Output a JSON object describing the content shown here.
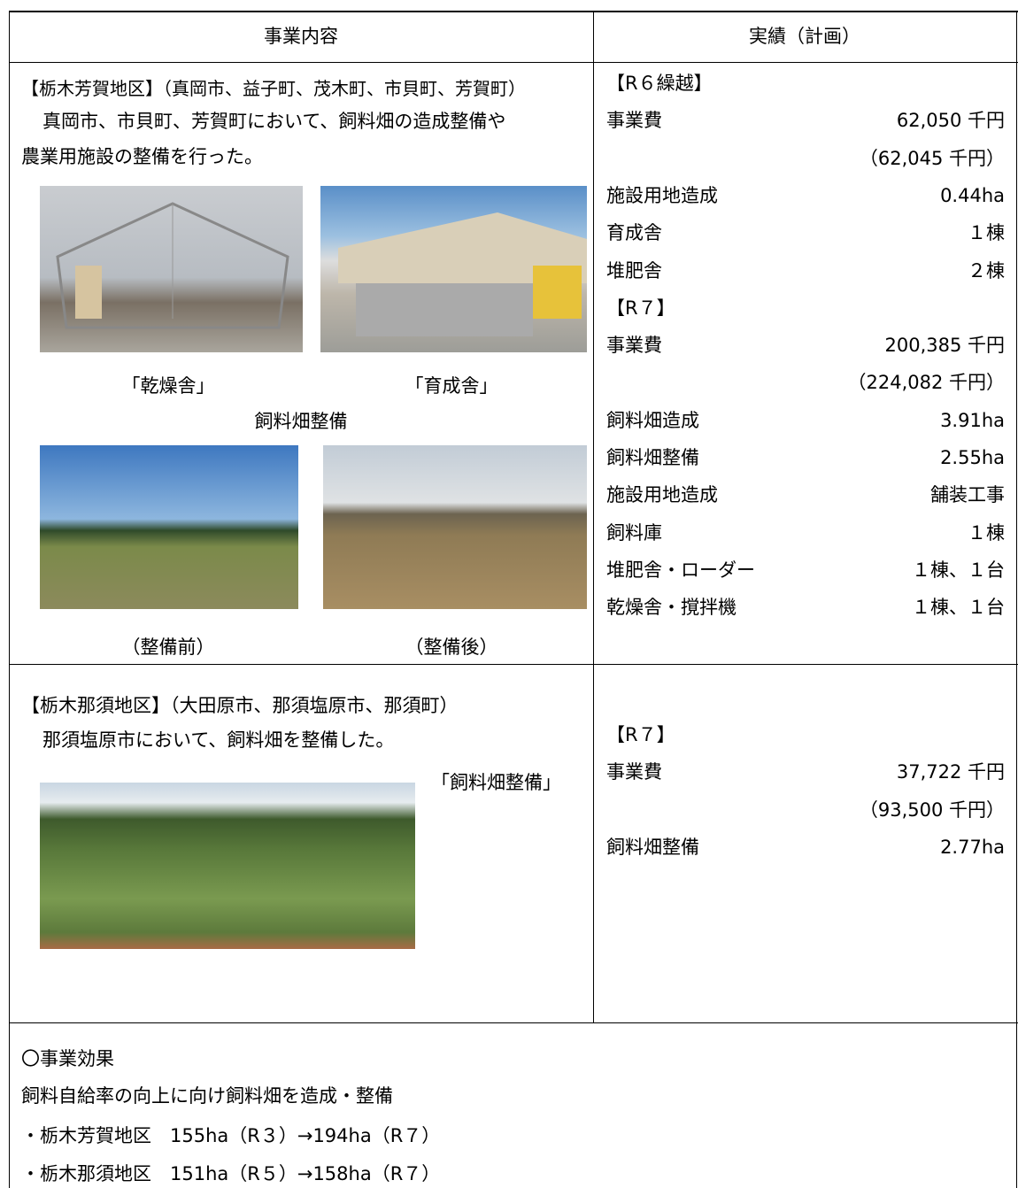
{
  "table": {
    "headers": [
      "事業内容",
      "実績（計画）"
    ],
    "rows": [
      {
        "left": {
          "title": "【栃木芳賀地区】（真岡市、益子町、茂木町、市貝町、芳賀町）",
          "lines": [
            "真岡市、市貝町、芳賀町において、飼料畑の造成整備や",
            "農業用施設の整備を行った。"
          ],
          "captions": [
            "「乾燥舎」",
            "「育成舎」"
          ],
          "group_label": "飼料畑整備",
          "captions_2": [
            "（整備前）",
            "（整備後）"
          ]
        },
        "right": [
          {
            "period": "【R６繰越】",
            "items": [
              {
                "label": "事業費",
                "value": "62,050 千円",
                "plan": "（62,045 千円）"
              },
              {
                "label": "施設用地造成",
                "value": "0.44ha"
              },
              {
                "label": "育成舎",
                "value": "１棟"
              },
              {
                "label": "堆肥舎",
                "value": "２棟"
              }
            ]
          },
          {
            "period": "【R７】",
            "items": [
              {
                "label": "事業費",
                "value": "200,385 千円",
                "plan": "（224,082 千円）"
              },
              {
                "label": "飼料畑造成",
                "value": "3.91ha"
              },
              {
                "label": "飼料畑整備",
                "value": "2.55ha"
              },
              {
                "label": "施設用地造成",
                "value": "舗装工事"
              },
              {
                "label": "飼料庫",
                "value": "１棟"
              },
              {
                "label": "堆肥舎・ローダー",
                "value": "１棟、１台"
              },
              {
                "label": "乾燥舎・撹拌機",
                "value": "１棟、１台"
              }
            ]
          }
        ]
      },
      {
        "left": {
          "title": "【栃木那須地区】（大田原市、那須塩原市、那須町）",
          "lines": [
            "那須塩原市において、飼料畑を整備した。"
          ],
          "captions": [
            "「飼料畑整備」"
          ]
        },
        "right": [
          {
            "period": "【R７】",
            "items": [
              {
                "label": "事業費",
                "value": "37,722 千円",
                "plan": "（93,500 千円）"
              },
              {
                "label": "飼料畑整備",
                "value": "2.77ha"
              }
            ]
          }
        ]
      }
    ],
    "effects": {
      "title": "〇事業効果",
      "lines": [
        "飼料自給率の向上に向け飼料畑を造成・整備",
        "・栃木芳賀地区　155ha（R３）→194ha（R７）",
        "・栃木那須地区　151ha（R５）→158ha（R７）"
      ]
    }
  }
}
